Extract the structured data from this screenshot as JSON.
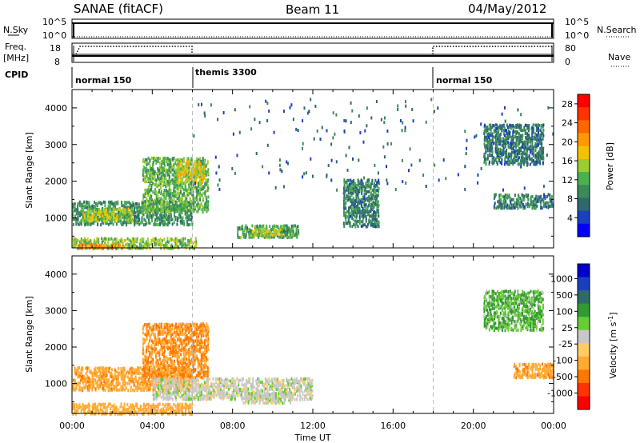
{
  "header": {
    "station": "SANAE (fitACF)",
    "beam": "Beam 11",
    "date": "04/May/2012"
  },
  "top_panels": {
    "nsky_label": "N.Sky",
    "nsearch_label": "N.Search",
    "nsky_ticks": [
      "10^5",
      "10^0"
    ],
    "nsearch_ticks": [
      "10^5",
      "10^0"
    ],
    "freq_label_1": "Freq.",
    "freq_label_2": "[MHz]",
    "freq_ticks": [
      "18",
      "8"
    ],
    "nave_label": "Nave",
    "nave_ticks": [
      "80",
      "0"
    ],
    "cpid_label": "CPID",
    "cpid_segments": [
      {
        "label": "normal 150",
        "start_hour": 0,
        "end_hour": 6
      },
      {
        "label": "themis 3300",
        "start_hour": 6,
        "end_hour": 18
      },
      {
        "label": "normal 150",
        "start_hour": 18,
        "end_hour": 24
      }
    ]
  },
  "colors": {
    "power_scale": [
      "#0000ff",
      "#1a3fbf",
      "#2e6a6a",
      "#3a8a5a",
      "#4caf50",
      "#9acd32",
      "#f2c400",
      "#ff9900",
      "#ff6600",
      "#ff3300",
      "#ff0000"
    ],
    "velocity_scale": [
      "#ff0000",
      "#ff3300",
      "#ff7700",
      "#ffaa33",
      "#ffcc66",
      "#c8c8c8",
      "#66cc33",
      "#339933",
      "#2e6a6a",
      "#1a3fbf",
      "#0000cc"
    ]
  },
  "chart_data": [
    {
      "type": "heatmap",
      "name": "power",
      "ylabel": "Slant Range [km]",
      "xlabel": "",
      "xlim": [
        0,
        24
      ],
      "ylim": [
        180,
        4500
      ],
      "x_ticks": [
        "00:00",
        "04:00",
        "08:00",
        "12:00",
        "16:00",
        "20:00",
        "00:00"
      ],
      "y_ticks": [
        "1000",
        "2000",
        "3000",
        "4000"
      ],
      "colorbar": {
        "label": "Power [dB]",
        "range": [
          0,
          30
        ],
        "ticks": [
          "28",
          "24",
          "20",
          "16",
          "12",
          "8",
          "4"
        ]
      },
      "regions": [
        {
          "t0": 0.0,
          "t1": 6.2,
          "r0": 200,
          "r1": 500,
          "value": 14
        },
        {
          "t0": 0.3,
          "t1": 2.5,
          "r0": 200,
          "r1": 320,
          "value": 22
        },
        {
          "t0": 0.0,
          "t1": 6.0,
          "r0": 850,
          "r1": 1500,
          "value": 9
        },
        {
          "t0": 0.5,
          "t1": 3.0,
          "r0": 950,
          "r1": 1300,
          "value": 15
        },
        {
          "t0": 3.5,
          "t1": 6.8,
          "r0": 1200,
          "r1": 2700,
          "value": 12
        },
        {
          "t0": 5.2,
          "t1": 6.6,
          "r0": 2000,
          "r1": 2600,
          "value": 17
        },
        {
          "t0": 8.2,
          "t1": 11.3,
          "r0": 500,
          "r1": 850,
          "value": 11
        },
        {
          "t0": 8.8,
          "t1": 10.5,
          "r0": 560,
          "r1": 750,
          "value": 16
        },
        {
          "t0": 13.5,
          "t1": 15.3,
          "r0": 800,
          "r1": 2100,
          "value": 8
        },
        {
          "t0": 21.0,
          "t1": 24.0,
          "r0": 1300,
          "r1": 1700,
          "value": 8
        },
        {
          "t0": 20.5,
          "t1": 23.5,
          "r0": 2500,
          "r1": 3600,
          "value": 7
        },
        {
          "t0": 6.0,
          "t1": 24.0,
          "r0": 1800,
          "r1": 4300,
          "value": 6
        }
      ]
    },
    {
      "type": "heatmap",
      "name": "velocity",
      "ylabel": "Slant Range [km]",
      "xlabel": "Time UT",
      "xlim": [
        0,
        24
      ],
      "ylim": [
        180,
        4500
      ],
      "x_ticks": [
        "00:00",
        "04:00",
        "08:00",
        "12:00",
        "16:00",
        "20:00",
        "00:00"
      ],
      "y_ticks": [
        "1000",
        "2000",
        "3000",
        "4000"
      ],
      "colorbar": {
        "label": "Velocity [m s^-1]",
        "ticks": [
          "1000",
          "500",
          "100",
          "25",
          "-25",
          "-100",
          "-500",
          "-1000"
        ]
      },
      "regions": [
        {
          "t0": 0.0,
          "t1": 6.0,
          "r0": 200,
          "r1": 500,
          "value": -150
        },
        {
          "t0": 0.0,
          "t1": 6.0,
          "r0": 850,
          "r1": 1500,
          "value": -200
        },
        {
          "t0": 3.5,
          "t1": 6.8,
          "r0": 1200,
          "r1": 2700,
          "value": -300
        },
        {
          "t0": 4.0,
          "t1": 12.0,
          "r0": 600,
          "r1": 1200,
          "value": 0
        },
        {
          "t0": 8.5,
          "t1": 11.0,
          "r0": 500,
          "r1": 800,
          "value": 0
        },
        {
          "t0": 22.0,
          "t1": 24.0,
          "r0": 1200,
          "r1": 1600,
          "value": -200
        },
        {
          "t0": 20.5,
          "t1": 23.5,
          "r0": 2500,
          "r1": 3600,
          "value": 100
        }
      ]
    }
  ]
}
